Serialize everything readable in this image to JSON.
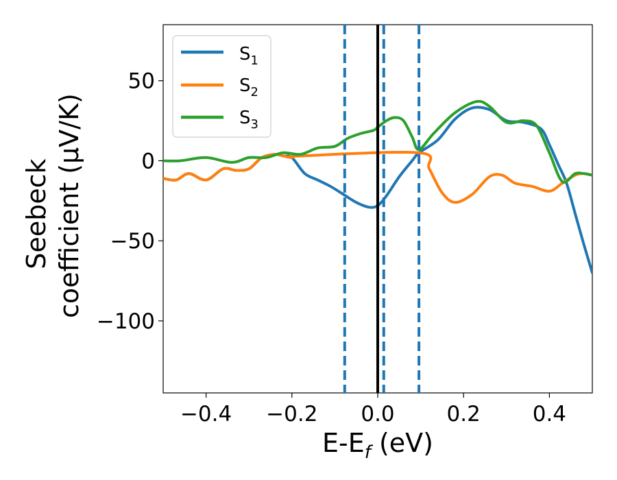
{
  "chart_data": {
    "type": "line",
    "xlabel": "E-E_f (eV)",
    "xlabel_parts": {
      "main": "E-E",
      "sub": "f",
      "unit": " (eV)"
    },
    "ylabel_lines": [
      "Seebeck",
      "coefficient  (μV/K)"
    ],
    "xlim": [
      -0.5,
      0.5
    ],
    "ylim": [
      -145,
      85
    ],
    "xticks": [
      -0.4,
      -0.2,
      0.0,
      0.2,
      0.4
    ],
    "xtick_labels": [
      "−0.4",
      "−0.2",
      "0.0",
      "0.2",
      "0.4"
    ],
    "yticks": [
      50,
      0,
      -50,
      -100
    ],
    "ytick_labels": [
      "50",
      "0",
      "−50",
      "−100"
    ],
    "grid": false,
    "legend_position": "top-left",
    "colors": {
      "S1": "#1f77b4",
      "S2": "#ff7f0e",
      "S3": "#2ca02c",
      "fermi": "#000000",
      "dashed": "#1f77b4"
    },
    "vlines": [
      {
        "x": 0.0,
        "style": "solid",
        "color": "#000000"
      },
      {
        "x": -0.077,
        "style": "dashed",
        "color": "#1f77b4"
      },
      {
        "x": 0.014,
        "style": "dashed",
        "color": "#1f77b4"
      },
      {
        "x": 0.096,
        "style": "dashed",
        "color": "#1f77b4"
      }
    ],
    "series": [
      {
        "name": "S_1",
        "main": "S",
        "sub": "1",
        "color": "#1f77b4",
        "x": [
          -0.5,
          -0.47,
          -0.44,
          -0.4,
          -0.36,
          -0.33,
          -0.3,
          -0.27,
          -0.24,
          -0.22,
          -0.2,
          -0.17,
          -0.14,
          -0.11,
          -0.08,
          -0.05,
          -0.02,
          0.0,
          0.02,
          0.05,
          0.08,
          0.096,
          0.14,
          0.18,
          0.22,
          0.26,
          0.3,
          0.34,
          0.38,
          0.4,
          0.42,
          0.44,
          0.46,
          0.48,
          0.5
        ],
        "y": [
          -11,
          -12,
          -8,
          -12,
          -5,
          -6,
          -5,
          2,
          4,
          3,
          2,
          -8,
          -12,
          -16,
          -21,
          -26,
          -29,
          -28,
          -22,
          -10,
          0,
          5,
          13,
          26,
          33,
          32,
          25,
          24,
          20,
          10,
          -2,
          -14,
          -33,
          -52,
          -70
        ]
      },
      {
        "name": "S_2",
        "main": "S",
        "sub": "2",
        "color": "#ff7f0e",
        "x": [
          -0.5,
          -0.47,
          -0.44,
          -0.4,
          -0.36,
          -0.33,
          -0.3,
          -0.27,
          -0.24,
          -0.22,
          -0.2,
          -0.18,
          0.096,
          0.12,
          0.15,
          0.18,
          0.22,
          0.26,
          0.29,
          0.32,
          0.36,
          0.4,
          0.43,
          0.46,
          0.48,
          0.5
        ],
        "y": [
          -11,
          -12,
          -8,
          -12,
          -5,
          -6,
          -5,
          2,
          4,
          3,
          2,
          3,
          5,
          -5,
          -20,
          -26,
          -21,
          -10,
          -9,
          -14,
          -16,
          -19,
          -14,
          -9,
          -8,
          -9
        ]
      },
      {
        "name": "S_3",
        "main": "S",
        "sub": "3",
        "color": "#2ca02c",
        "x": [
          -0.5,
          -0.46,
          -0.4,
          -0.34,
          -0.3,
          -0.26,
          -0.22,
          -0.18,
          -0.14,
          -0.1,
          -0.07,
          -0.04,
          -0.01,
          0.0,
          0.02,
          0.04,
          0.06,
          0.08,
          0.096,
          0.13,
          0.18,
          0.23,
          0.26,
          0.3,
          0.34,
          0.37,
          0.4,
          0.43,
          0.46,
          0.48,
          0.5
        ],
        "y": [
          0,
          0,
          2,
          -1,
          2,
          2,
          5,
          4,
          8,
          9,
          14,
          17,
          19,
          21,
          25,
          27,
          25,
          15,
          7,
          17,
          30,
          37,
          34,
          24,
          25,
          22,
          5,
          -13,
          -8,
          -8,
          -9
        ]
      }
    ]
  }
}
